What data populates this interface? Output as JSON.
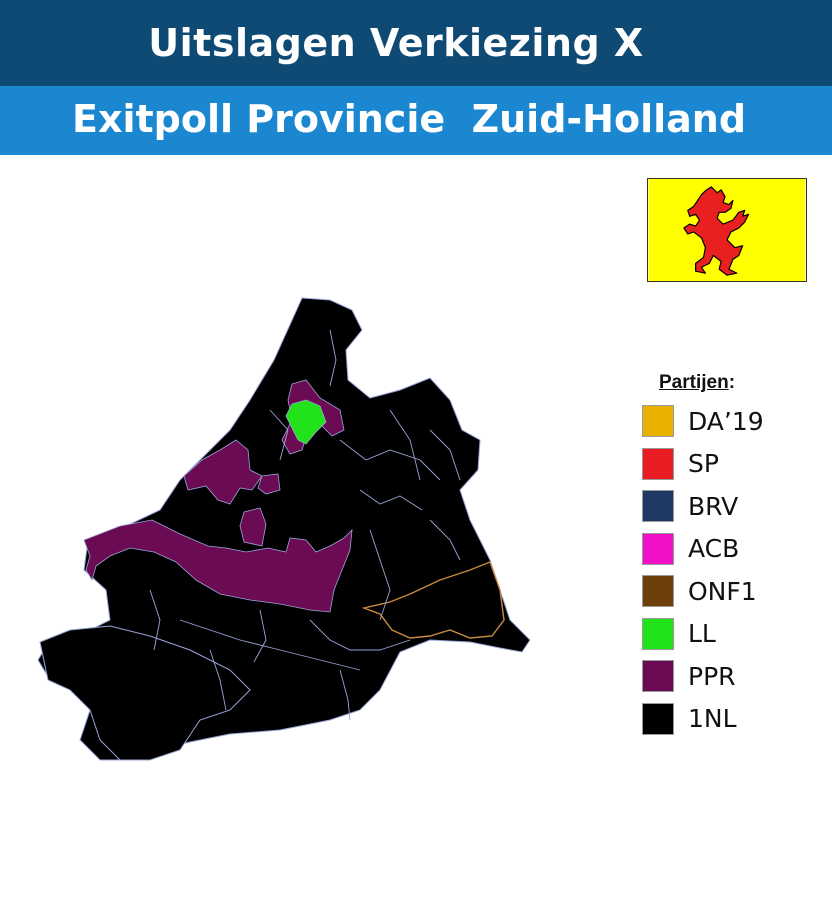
{
  "header": {
    "title": "Uitslagen Verkiezing X",
    "subtitle": "Exitpoll Provincie  Zuid-Holland"
  },
  "flag": {
    "icon": "zuid-holland-flag-lion-icon",
    "background": "#ffff00",
    "lion_color": "#e8201f"
  },
  "legend": {
    "title": "Partijen",
    "title_suffix": ":",
    "items": [
      {
        "label": "DA’19",
        "color": "#e8b000"
      },
      {
        "label": "SP",
        "color": "#ec1c24"
      },
      {
        "label": "BRV",
        "color": "#1f3864"
      },
      {
        "label": "ACB",
        "color": "#f20fc8"
      },
      {
        "label": "ONF1",
        "color": "#6d3f0a"
      },
      {
        "label": "LL",
        "color": "#22e21a"
      },
      {
        "label": "PPR",
        "color": "#6a0b54"
      },
      {
        "label": "1NL",
        "color": "#000000"
      }
    ]
  },
  "map": {
    "winner_regions": [
      {
        "party": "1NL",
        "color": "#000000"
      },
      {
        "party": "PPR",
        "color": "#6a0b54"
      },
      {
        "party": "LL",
        "color": "#22e21a"
      },
      {
        "party": "ONF1",
        "color": "#6d3f0a"
      }
    ],
    "border_color": "#9aa6d8"
  }
}
